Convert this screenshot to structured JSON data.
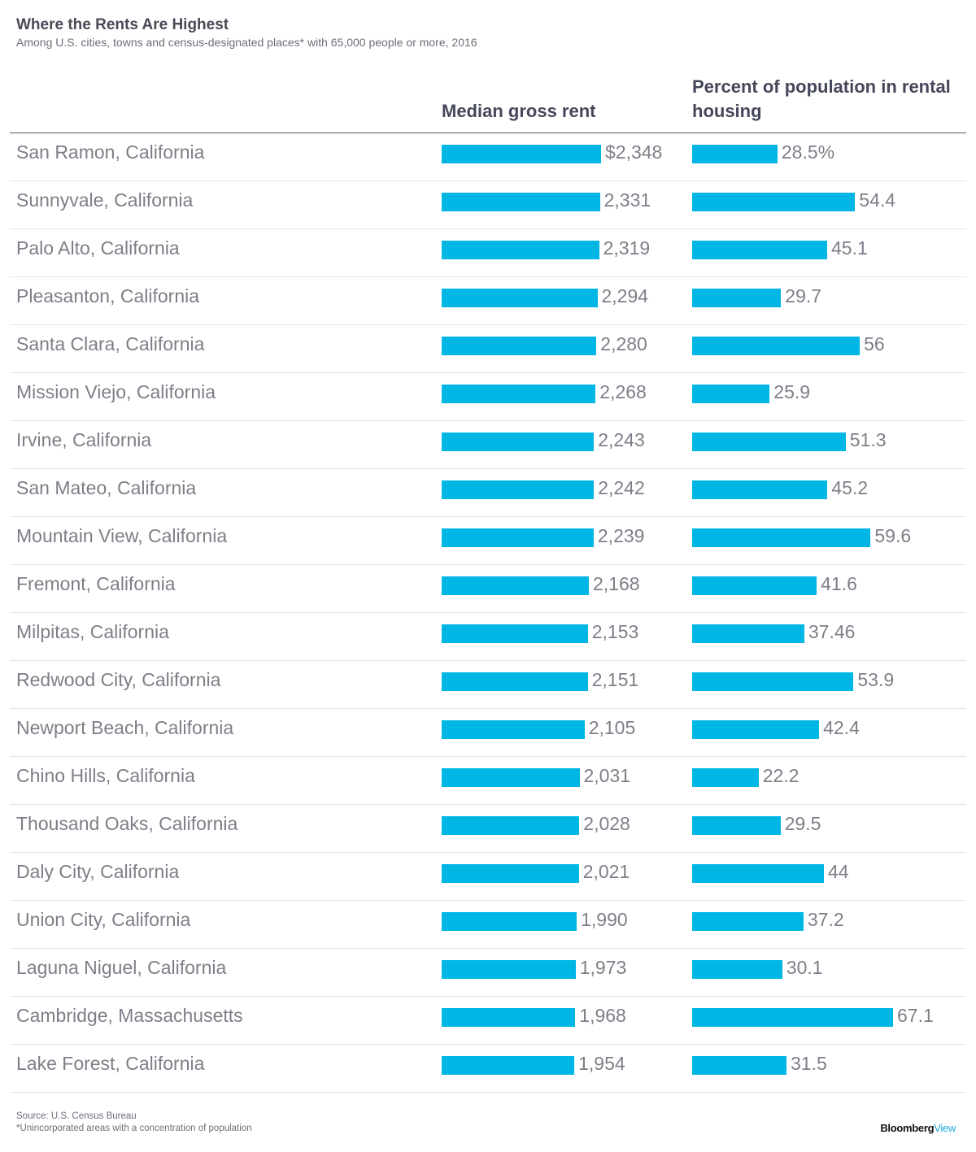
{
  "title": "Where the Rents Are Highest",
  "subtitle": "Among U.S. cities, towns and census-designated places* with 65,000 people or more, 2016",
  "columns": {
    "rent": "Median gross rent",
    "pct": "Percent of population in rental housing"
  },
  "footer": {
    "source": "Source: U.S. Census Bureau",
    "note": "*Unincorporated areas with a concentration of population"
  },
  "brand": {
    "main": "Bloomberg",
    "suffix": "View"
  },
  "colors": {
    "bar": "#00b6e4"
  },
  "chart_data": {
    "type": "bar",
    "orientation": "horizontal",
    "categories": [
      "San Ramon, California",
      "Sunnyvale, California",
      "Palo Alto, California",
      "Pleasanton, California",
      "Santa Clara, California",
      "Mission Viejo, California",
      "Irvine, California",
      "San Mateo, California",
      "Mountain View, California",
      "Fremont, California",
      "Milpitas, California",
      "Redwood City, California",
      "Newport Beach, California",
      "Chino Hills, California",
      "Thousand Oaks, California",
      "Daly City, California",
      "Union City, California",
      "Laguna Niguel, California",
      "Cambridge, Massachusetts",
      "Lake Forest, California"
    ],
    "series": [
      {
        "name": "Median gross rent",
        "values": [
          2348,
          2331,
          2319,
          2294,
          2280,
          2268,
          2243,
          2242,
          2239,
          2168,
          2153,
          2151,
          2105,
          2031,
          2028,
          2021,
          1990,
          1973,
          1968,
          1954
        ],
        "labels": [
          "$2,348",
          "2,331",
          "2,319",
          "2,294",
          "2,280",
          "2,268",
          "2,243",
          "2,242",
          "2,239",
          "2,168",
          "2,153",
          "2,151",
          "2,105",
          "2,031",
          "2,028",
          "2,021",
          "1,990",
          "1,973",
          "1,968",
          "1,954"
        ]
      },
      {
        "name": "Percent of population in rental housing",
        "values": [
          28.5,
          54.4,
          45.1,
          29.7,
          56,
          25.9,
          51.3,
          45.2,
          59.6,
          41.6,
          37.46,
          53.9,
          42.4,
          22.2,
          29.5,
          44,
          37.2,
          30.1,
          67.1,
          31.5
        ],
        "labels": [
          "28.5%",
          "54.4",
          "45.1",
          "29.7",
          "56",
          "25.9",
          "51.3",
          "45.2",
          "59.6",
          "41.6",
          "37.46",
          "53.9",
          "42.4",
          "22.2",
          "29.5",
          "44",
          "37.2",
          "30.1",
          "67.1",
          "31.5"
        ]
      }
    ],
    "grid": false,
    "legend": "none"
  }
}
